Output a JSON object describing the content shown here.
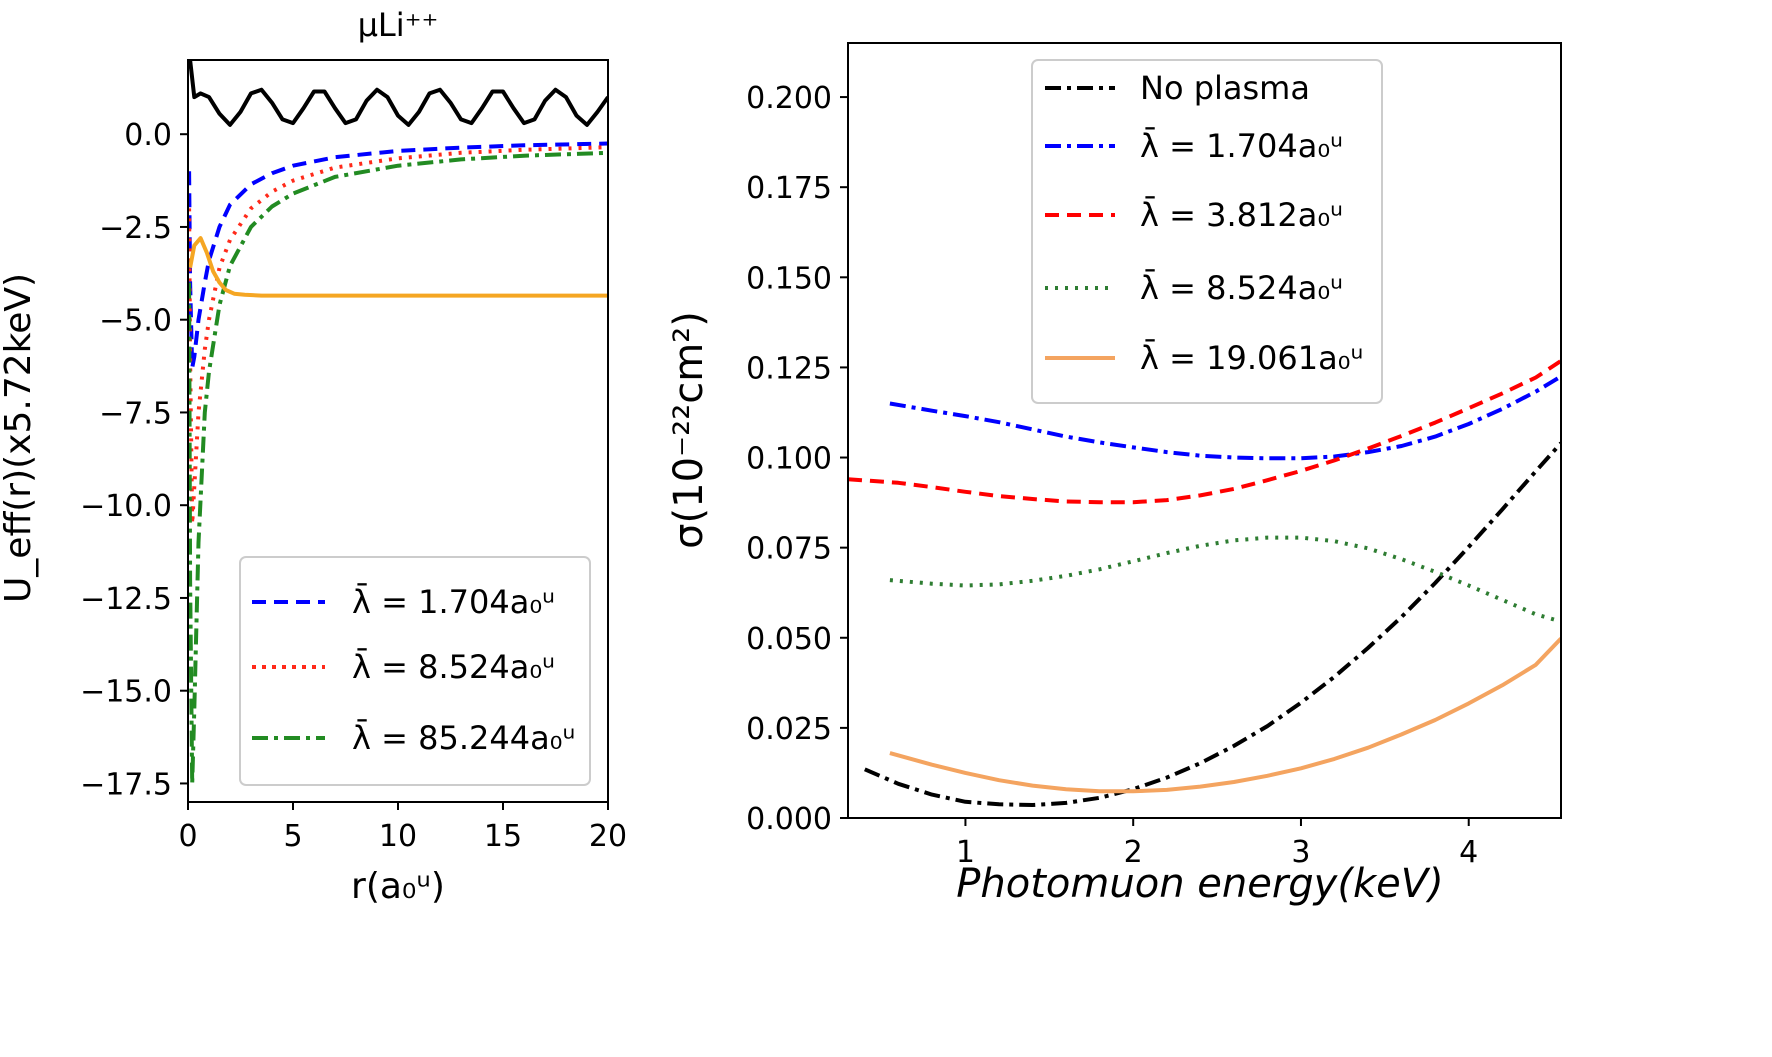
{
  "chart_data": [
    {
      "type": "line",
      "title": "μLi⁺⁺",
      "xlabel": "r(a₀ᵘ)",
      "ylabel": "U_eff(r)(x5.72keV)",
      "xlim": [
        0,
        20
      ],
      "ylim": [
        -18,
        2
      ],
      "xticks": [
        "0",
        "5",
        "10",
        "15",
        "20"
      ],
      "yticks": [
        "0.0",
        "−2.5",
        "−5.0",
        "−7.5",
        "−10.0",
        "−12.5",
        "−15.0",
        "−17.5"
      ],
      "ytick_values": [
        0,
        -2.5,
        -5,
        -7.5,
        -10,
        -12.5,
        -15,
        -17.5
      ],
      "legend_position": "lower-right",
      "series": [
        {
          "name": "λ̄ = 1.704a₀ᵘ",
          "color": "#0000ff",
          "style": "dashed",
          "x": [
            0.05,
            0.1,
            0.2,
            0.3,
            0.5,
            0.8,
            1,
            1.5,
            2,
            3,
            4,
            5,
            7,
            10,
            13,
            16,
            20
          ],
          "y": [
            -1,
            -4,
            -6.3,
            -6.0,
            -5.0,
            -4.0,
            -3.4,
            -2.5,
            -1.9,
            -1.35,
            -1.05,
            -0.85,
            -0.62,
            -0.45,
            -0.36,
            -0.3,
            -0.25
          ]
        },
        {
          "name": "λ̄ = 8.524a₀ᵘ",
          "color": "#ff2a1a",
          "style": "dotted",
          "x": [
            0.05,
            0.1,
            0.2,
            0.3,
            0.5,
            0.8,
            1,
            1.5,
            2,
            3,
            4,
            5,
            7,
            10,
            13,
            16,
            20
          ],
          "y": [
            -2,
            -6,
            -10.5,
            -9.5,
            -7.5,
            -5.8,
            -5.0,
            -3.6,
            -2.85,
            -2.0,
            -1.55,
            -1.25,
            -0.9,
            -0.65,
            -0.5,
            -0.42,
            -0.35
          ]
        },
        {
          "name": "λ̄ = 85.244a₀ᵘ",
          "color": "#228b22",
          "style": "dashdot",
          "x": [
            0.05,
            0.1,
            0.2,
            0.3,
            0.5,
            0.8,
            1,
            1.5,
            2,
            3,
            4,
            5,
            7,
            10,
            13,
            16,
            20
          ],
          "y": [
            -4,
            -12,
            -17.5,
            -15.5,
            -11.0,
            -7.5,
            -6.4,
            -4.6,
            -3.55,
            -2.5,
            -1.95,
            -1.6,
            -1.15,
            -0.85,
            -0.68,
            -0.58,
            -0.5
          ]
        },
        {
          "name": "",
          "color": "#f5a623",
          "style": "solid",
          "x": [
            0.1,
            0.3,
            0.6,
            0.9,
            1.2,
            1.5,
            1.8,
            2.2,
            2.7,
            3.5,
            5,
            10,
            15,
            20
          ],
          "y": [
            -3.6,
            -3.0,
            -2.8,
            -3.2,
            -3.7,
            -4.0,
            -4.2,
            -4.3,
            -4.33,
            -4.35,
            -4.35,
            -4.35,
            -4.35,
            -4.35
          ]
        },
        {
          "name": "",
          "color": "#000000",
          "style": "solid",
          "x": [
            0.1,
            0.3,
            0.6,
            1.0,
            1.5,
            2.0,
            2.5,
            3.0,
            3.5,
            4.0,
            4.5,
            5.0,
            5.5,
            6.0,
            6.5,
            7.0,
            7.5,
            8.0,
            8.5,
            9.0,
            9.5,
            10.0,
            10.5,
            11.0,
            11.5,
            12.0,
            12.5,
            13.0,
            13.5,
            14.0,
            14.5,
            15.0,
            15.5,
            16.0,
            16.5,
            17.0,
            17.5,
            18.0,
            18.5,
            19.0,
            19.5,
            20.0
          ],
          "y": [
            2.0,
            1.0,
            1.1,
            1.0,
            0.55,
            0.25,
            0.6,
            1.1,
            1.2,
            0.85,
            0.4,
            0.3,
            0.7,
            1.15,
            1.15,
            0.7,
            0.3,
            0.4,
            0.9,
            1.2,
            1.0,
            0.5,
            0.25,
            0.6,
            1.1,
            1.2,
            0.85,
            0.4,
            0.3,
            0.7,
            1.15,
            1.15,
            0.7,
            0.3,
            0.4,
            0.9,
            1.2,
            1.0,
            0.5,
            0.25,
            0.6,
            1.0
          ]
        }
      ]
    },
    {
      "type": "line",
      "title": "",
      "xlabel": "Photomuon energy(keV)",
      "ylabel": "σ(10⁻²²cm²)",
      "xlim": [
        0.3,
        4.55
      ],
      "ylim": [
        0,
        0.215
      ],
      "xticks": [
        "1",
        "2",
        "3",
        "4"
      ],
      "xtick_values": [
        1,
        2,
        3,
        4
      ],
      "yticks": [
        "0.000",
        "0.025",
        "0.050",
        "0.075",
        "0.100",
        "0.125",
        "0.150",
        "0.175",
        "0.200"
      ],
      "ytick_values": [
        0,
        0.025,
        0.05,
        0.075,
        0.1,
        0.125,
        0.15,
        0.175,
        0.2
      ],
      "legend_position": "upper-center",
      "series": [
        {
          "name": "No plasma",
          "color": "#000000",
          "style": "dashdot",
          "x": [
            0.4,
            0.6,
            0.8,
            1.0,
            1.2,
            1.4,
            1.6,
            1.8,
            2.0,
            2.2,
            2.4,
            2.6,
            2.8,
            3.0,
            3.2,
            3.4,
            3.6,
            3.8,
            4.0,
            4.2,
            4.4,
            4.55
          ],
          "y": [
            0.0135,
            0.0095,
            0.0065,
            0.0045,
            0.0038,
            0.0036,
            0.0042,
            0.0056,
            0.008,
            0.0112,
            0.0152,
            0.02,
            0.0255,
            0.032,
            0.0392,
            0.0472,
            0.0558,
            0.0652,
            0.0752,
            0.0856,
            0.0962,
            0.104
          ]
        },
        {
          "name": "λ̄ = 1.704a₀ᵘ",
          "color": "#0000ff",
          "style": "dashdot",
          "x": [
            0.55,
            0.8,
            1.0,
            1.2,
            1.4,
            1.6,
            1.8,
            2.0,
            2.2,
            2.4,
            2.6,
            2.8,
            3.0,
            3.2,
            3.4,
            3.6,
            3.8,
            4.0,
            4.2,
            4.4,
            4.55
          ],
          "y": [
            0.115,
            0.113,
            0.1115,
            0.1098,
            0.1078,
            0.1058,
            0.1042,
            0.1028,
            0.1015,
            0.1005,
            0.1,
            0.0998,
            0.0998,
            0.1003,
            0.1015,
            0.1032,
            0.1058,
            0.1093,
            0.1135,
            0.1183,
            0.1225
          ]
        },
        {
          "name": "λ̄ = 3.812a₀ᵘ",
          "color": "#ff0000",
          "style": "dashed",
          "x": [
            0.3,
            0.6,
            0.8,
            1.0,
            1.2,
            1.4,
            1.6,
            1.8,
            2.0,
            2.2,
            2.4,
            2.6,
            2.8,
            3.0,
            3.2,
            3.4,
            3.6,
            3.8,
            4.0,
            4.2,
            4.4,
            4.55
          ],
          "y": [
            0.094,
            0.093,
            0.0918,
            0.0905,
            0.0893,
            0.0885,
            0.0878,
            0.0876,
            0.0876,
            0.0882,
            0.0895,
            0.0913,
            0.0937,
            0.0963,
            0.0992,
            0.1025,
            0.106,
            0.1097,
            0.1137,
            0.1178,
            0.1222,
            0.1268
          ]
        },
        {
          "name": "λ̄ = 8.524a₀ᵘ",
          "color": "#2e7d32",
          "style": "dotted",
          "x": [
            0.55,
            0.8,
            1.0,
            1.2,
            1.4,
            1.6,
            1.8,
            2.0,
            2.2,
            2.4,
            2.6,
            2.8,
            3.0,
            3.2,
            3.4,
            3.6,
            3.8,
            4.0,
            4.2,
            4.4,
            4.55
          ],
          "y": [
            0.066,
            0.065,
            0.0645,
            0.0648,
            0.0658,
            0.0672,
            0.069,
            0.0712,
            0.0735,
            0.0755,
            0.077,
            0.0778,
            0.0778,
            0.0768,
            0.0748,
            0.0718,
            0.0683,
            0.0645,
            0.0605,
            0.0565,
            0.0545
          ]
        },
        {
          "name": "λ̄ = 19.061a₀ᵘ",
          "color": "#f4a460",
          "style": "solid",
          "x": [
            0.55,
            0.8,
            1.0,
            1.2,
            1.4,
            1.6,
            1.8,
            2.0,
            2.2,
            2.4,
            2.6,
            2.8,
            3.0,
            3.2,
            3.4,
            3.6,
            3.8,
            4.0,
            4.2,
            4.4,
            4.55
          ],
          "y": [
            0.018,
            0.0148,
            0.0125,
            0.0105,
            0.009,
            0.008,
            0.0074,
            0.0074,
            0.0078,
            0.0087,
            0.01,
            0.0117,
            0.0138,
            0.0164,
            0.0195,
            0.0232,
            0.0272,
            0.0318,
            0.0368,
            0.0425,
            0.0498
          ]
        }
      ]
    }
  ]
}
